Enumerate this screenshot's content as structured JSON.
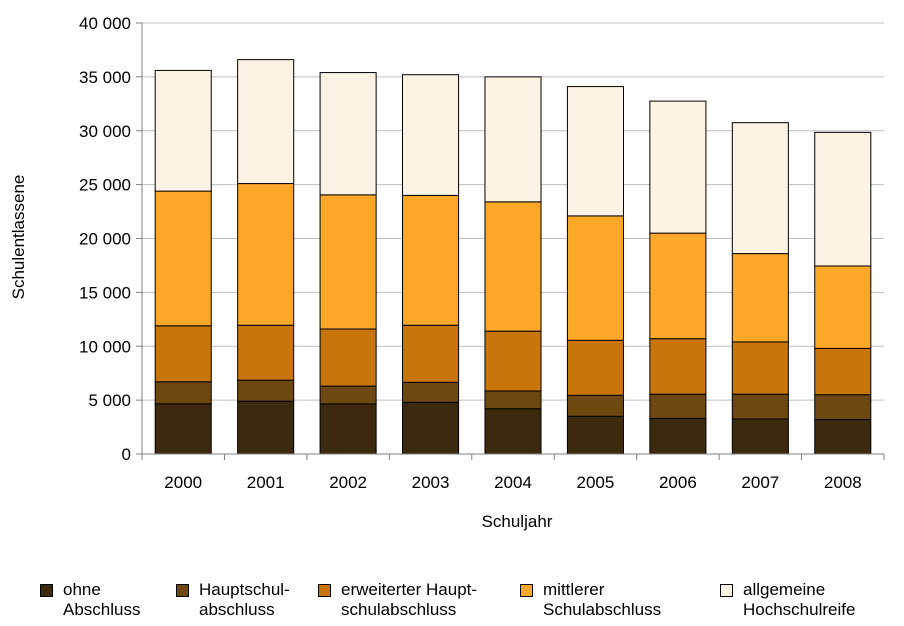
{
  "chart_data": {
    "type": "bar",
    "stacked": true,
    "title": "",
    "xlabel": "Schuljahr",
    "ylabel": "Schulentlassene",
    "ylim": [
      0,
      40000
    ],
    "yticks": [
      0,
      5000,
      10000,
      15000,
      20000,
      25000,
      30000,
      35000,
      40000
    ],
    "ytick_labels": [
      "0",
      "5 000",
      "10 000",
      "15 000",
      "20 000",
      "25 000",
      "30 000",
      "35 000",
      "40 000"
    ],
    "grid": true,
    "legend_position": "bottom",
    "categories": [
      "2000",
      "2001",
      "2002",
      "2003",
      "2004",
      "2005",
      "2006",
      "2007",
      "2008"
    ],
    "series": [
      {
        "name": "ohne\nAbschluss",
        "color": "#3d2a0e",
        "values": [
          4650,
          4900,
          4650,
          4800,
          4200,
          3500,
          3300,
          3250,
          3200
        ]
      },
      {
        "name": "Hauptschul-\nabschluss",
        "color": "#6e4811",
        "values": [
          2050,
          1950,
          1650,
          1850,
          1650,
          1950,
          2250,
          2300,
          2300
        ]
      },
      {
        "name": "erweiterter Haupt-\nschulabschluss",
        "color": "#c8760c",
        "values": [
          5200,
          5100,
          5300,
          5300,
          5550,
          5100,
          5150,
          4850,
          4300
        ]
      },
      {
        "name": "mittlerer\nSchulabschluss",
        "color": "#fba728",
        "values": [
          12500,
          13150,
          12450,
          12050,
          12000,
          11550,
          9800,
          8200,
          7650
        ]
      },
      {
        "name": "allgemeine\nHochschulreife",
        "color": "#fdf3e4",
        "values": [
          11200,
          11500,
          11350,
          11200,
          11600,
          12000,
          12250,
          12150,
          12400
        ]
      }
    ]
  }
}
